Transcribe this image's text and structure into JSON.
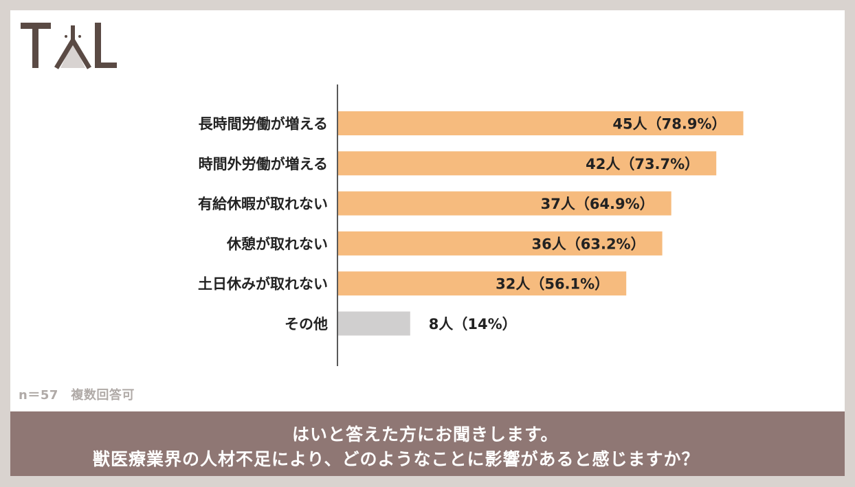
{
  "logo": {
    "text": "TAL",
    "colors": {
      "dark": "#5a4a44",
      "accent": "#a09896",
      "light": "#d8d3d1"
    }
  },
  "chart_data": {
    "type": "bar",
    "orientation": "horizontal",
    "categories": [
      "長時間労働が増える",
      "時間外労働が増える",
      "有給休暇が取れない",
      "休憩が取れない",
      "土日休みが取れない",
      "その他"
    ],
    "values": [
      45,
      42,
      37,
      36,
      32,
      8
    ],
    "value_labels": [
      "45人（78.9%）",
      "42人（73.7%）",
      "37人（64.9%）",
      "36人（63.2%）",
      "32人（56.1%）",
      "8人（14%）"
    ],
    "colors": [
      "#f6bb7e",
      "#f6bb7e",
      "#f6bb7e",
      "#f6bb7e",
      "#f6bb7e",
      "#d0cfcf"
    ],
    "xlim": [
      0,
      50
    ],
    "grid": false,
    "legend": "none",
    "title": "",
    "xlabel": "",
    "ylabel": ""
  },
  "note": "n＝57　複数回答可",
  "banner": {
    "line1": "はいと答えた方にお聞きします。",
    "line2": "獣医療業界の人材不足により、どのようなことに影響があると感じますか？"
  }
}
